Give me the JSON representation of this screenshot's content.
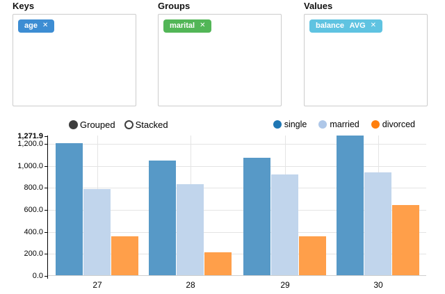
{
  "builder": {
    "sections": [
      {
        "label": "Keys",
        "tag": {
          "text": "age",
          "remove_icon": "✕",
          "color": "#3d8dd3"
        }
      },
      {
        "label": "Groups",
        "tag": {
          "text": "marital",
          "remove_icon": "✕",
          "color": "#52b657"
        }
      },
      {
        "label": "Values",
        "tag": {
          "text": "balance AVG",
          "remove_icon": "✕",
          "color": "#5fc3e1"
        }
      }
    ]
  },
  "controls": {
    "grouped_label": "Grouped",
    "stacked_label": "Stacked",
    "selected_mode": "Grouped"
  },
  "chart_data": {
    "type": "bar",
    "mode": "grouped",
    "categories": [
      "27",
      "28",
      "29",
      "30"
    ],
    "series": [
      {
        "name": "single",
        "legend_color": "#1f77b4",
        "bar_color": "#5799c7",
        "values": [
          1197,
          1041,
          1070,
          1271.9
        ]
      },
      {
        "name": "married",
        "legend_color": "#aec7e8",
        "bar_color": "#c1d5ec",
        "values": [
          786,
          828,
          917,
          936
        ]
      },
      {
        "name": "divorced",
        "legend_color": "#ff7f0e",
        "bar_color": "#ff9f4a",
        "values": [
          355,
          208,
          355,
          639
        ]
      }
    ],
    "ylim": [
      0,
      1271.9
    ],
    "y_tick_values": [
      0,
      200,
      400,
      600,
      800,
      1000,
      1200
    ],
    "y_tick_labels": [
      "0.0",
      "200.0",
      "400.0",
      "600.0",
      "800.0",
      "1,000.0",
      "1,200.0"
    ],
    "y_max_label": "1,271.9",
    "grid": true,
    "legend_position": "top-right"
  }
}
